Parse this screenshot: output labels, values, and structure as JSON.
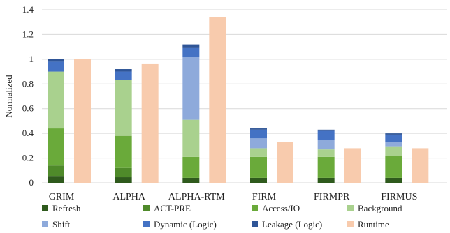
{
  "chart_data": {
    "type": "bar",
    "stacked_and_grouped": true,
    "categories": [
      "GRIM",
      "ALPHA",
      "ALPHA-RTM",
      "FIRM",
      "FIRMPR",
      "FIRMUS"
    ],
    "ylabel": "Normalized",
    "xlabel": "",
    "ylim": [
      0,
      1.4
    ],
    "yticks": [
      "0",
      "0.2",
      "0.4",
      "0.6",
      "0.8",
      "1",
      "1.2",
      "1.4"
    ],
    "grid": "horizontal",
    "legend_position": "bottom",
    "stack_series": [
      {
        "name": "Refresh",
        "color": "#2f5a1d",
        "values": [
          0.05,
          0.045,
          0.04,
          0.04,
          0.04,
          0.04
        ]
      },
      {
        "name": "ACT-PRE",
        "color": "#4f8a2a",
        "values": [
          0.09,
          0.075,
          0.0,
          0.0,
          0.0,
          0.0
        ]
      },
      {
        "name": "Access/IO",
        "color": "#6aaa3a",
        "values": [
          0.3,
          0.26,
          0.17,
          0.17,
          0.17,
          0.18
        ]
      },
      {
        "name": "Background",
        "color": "#a9d18e",
        "values": [
          0.46,
          0.45,
          0.3,
          0.07,
          0.06,
          0.07
        ]
      },
      {
        "name": "Shift",
        "color": "#8eaadb",
        "values": [
          0.0,
          0.0,
          0.51,
          0.08,
          0.08,
          0.04
        ]
      },
      {
        "name": "Dynamic (Logic)",
        "color": "#4472c4",
        "values": [
          0.08,
          0.07,
          0.07,
          0.07,
          0.07,
          0.06
        ]
      },
      {
        "name": "Leakage (Logic)",
        "color": "#2f5597",
        "values": [
          0.02,
          0.02,
          0.03,
          0.01,
          0.01,
          0.01
        ]
      }
    ],
    "side_series": {
      "name": "Runtime",
      "color": "#f8cbad",
      "values": [
        1.0,
        0.96,
        1.34,
        0.33,
        0.28,
        0.28
      ]
    }
  }
}
